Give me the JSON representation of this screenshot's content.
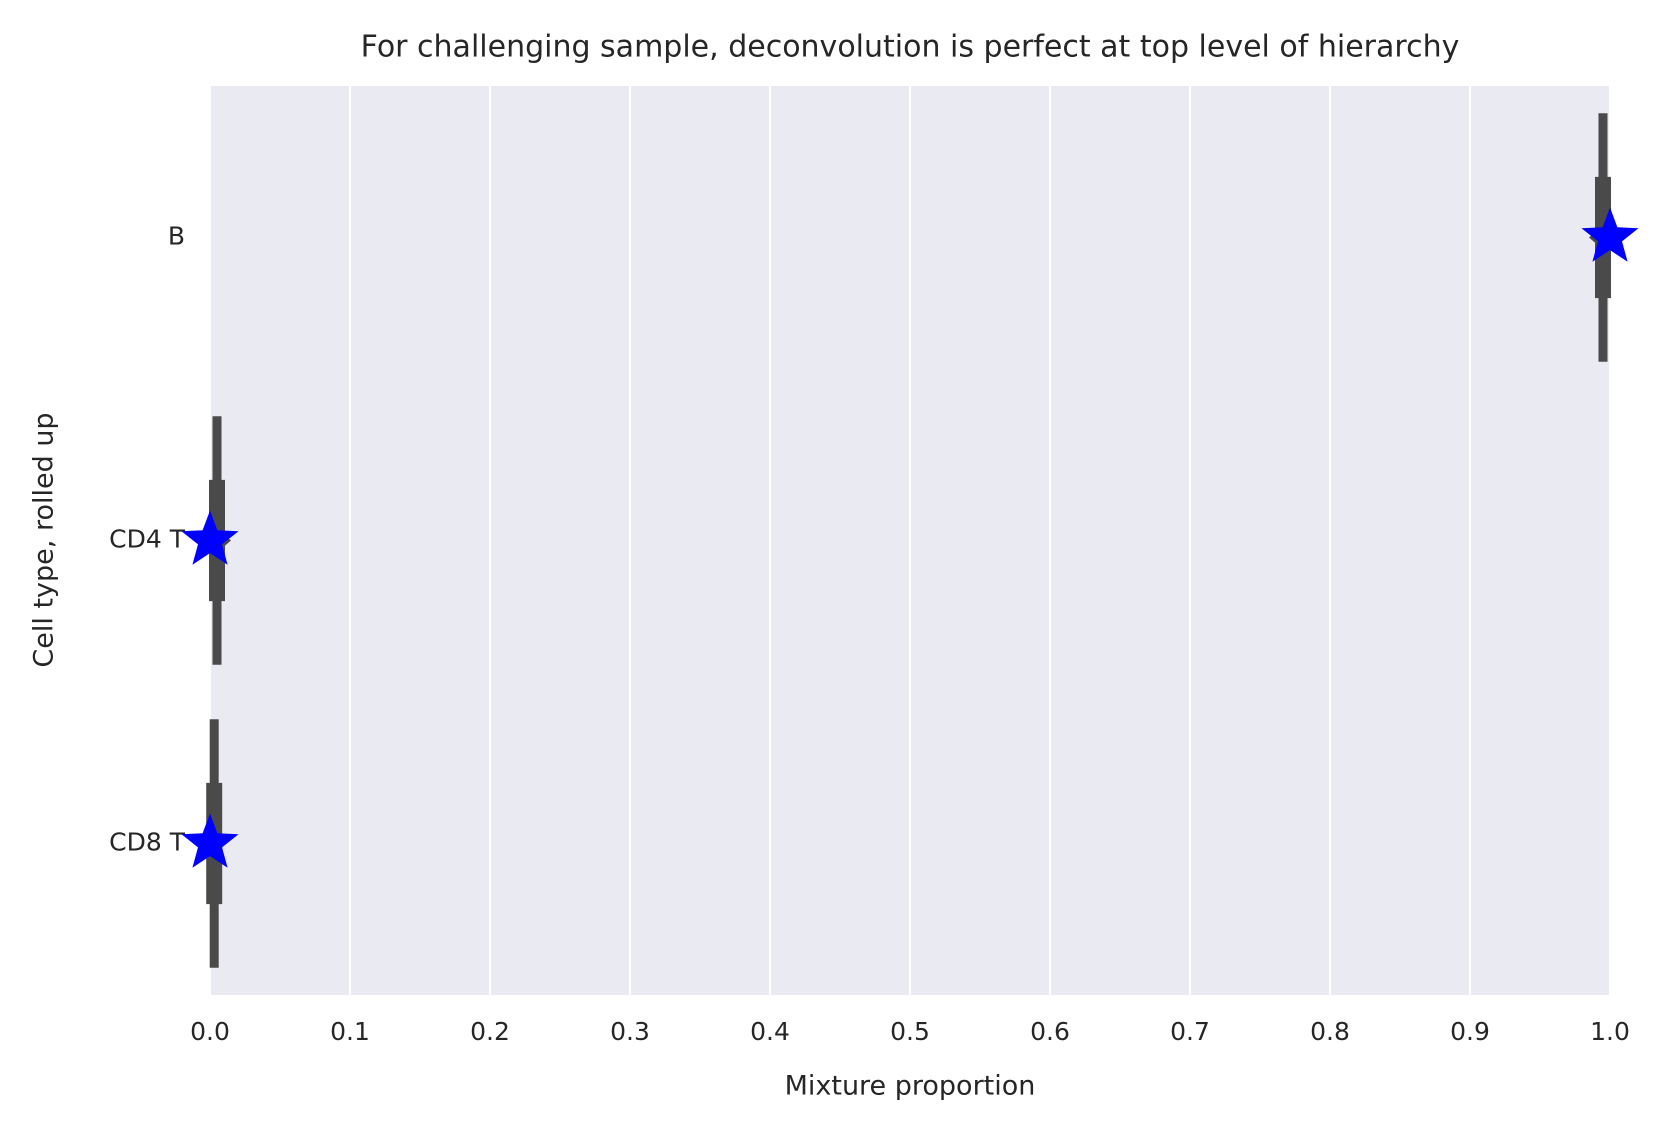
{
  "chart_data": {
    "type": "violin",
    "title": "For challenging sample, deconvolution is perfect at top level of hierarchy",
    "x_label": "Mixture proportion",
    "y_label": "Cell type, rolled up",
    "categories": [
      "B",
      "CD4 T",
      "CD8 T"
    ],
    "min": [
      0.985,
      0.0,
      0.0
    ],
    "median": [
      0.995,
      0.005,
      0.003
    ],
    "max": [
      1.0,
      0.015,
      0.008
    ],
    "truth": [
      1.0,
      0.0,
      0.0
    ],
    "color": "#4a4a4a",
    "truth_color": "#0000ff",
    "xlim": [
      0,
      1
    ],
    "xticks": [
      {
        "value": 0,
        "label": "0.0"
      },
      0.1,
      0.2,
      0.3,
      0.4,
      0.5,
      0.6,
      0.7,
      0.8,
      0.9,
      {
        "value": 1,
        "label": "1.0"
      }
    ],
    "grid": true
  }
}
